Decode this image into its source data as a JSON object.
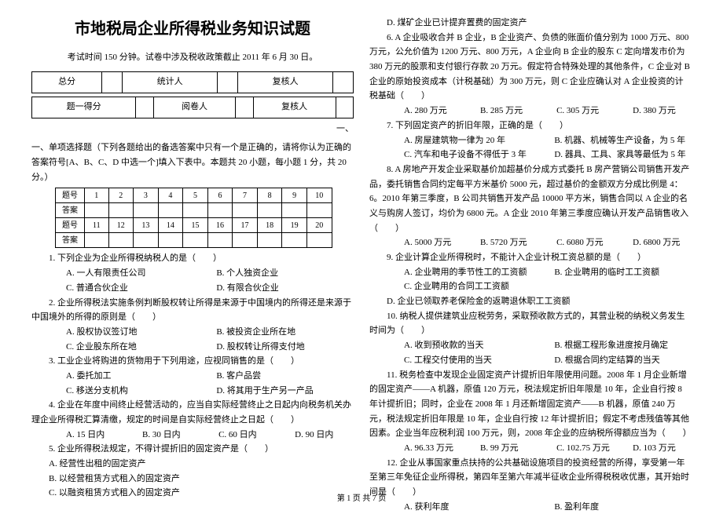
{
  "title": "市地税局企业所得税业务知识试题",
  "exam_meta": "考试时间 150 分钟。试卷中涉及税收政策截止 2011 年 6 月 30 日。",
  "header_table": {
    "row1": [
      "总分",
      "",
      "统计人",
      "",
      "复核人",
      ""
    ],
    "row2": [
      "题一得分",
      "",
      "阅卷人",
      "",
      "复核人",
      ""
    ]
  },
  "section1_label_suffix": "一、",
  "section1_head": "一、单项选择题（下列各题给出的备选答案中只有一个是正确的，请将你认为正确的答案符号[A、B、C、D 中选一个]填入下表中。本题共 20 小题，每小题 1 分，共 20 分。）",
  "answersheet": {
    "row_label": "题号",
    "ans_label": "答案",
    "nums1": [
      "1",
      "2",
      "3",
      "4",
      "5",
      "6",
      "7",
      "8",
      "9",
      "10"
    ],
    "nums2": [
      "11",
      "12",
      "13",
      "14",
      "15",
      "16",
      "17",
      "18",
      "19",
      "20"
    ]
  },
  "q1": {
    "stem": "1. 下列企业为企业所得税纳税人的是（　　）",
    "a": "A. 一人有限责任公司",
    "b": "B. 个人独资企业",
    "c": "C. 普通合伙企业",
    "d": "D. 有限合伙企业"
  },
  "q2": {
    "stem": "2. 企业所得税法实施条例判断股权转让所得是来源于中国境内的所得还是来源于中国境外的所得的原则是（　　）",
    "a": "A. 股权协议签订地",
    "b": "B. 被投资企业所在地",
    "c": "C. 企业股东所在地",
    "d": "D. 股权转让所得支付地"
  },
  "q3": {
    "stem": "3. 工业企业将购进的货物用于下列用途，应视同销售的是（　　）",
    "a": "A. 委托加工",
    "b": "B. 客户品尝",
    "c": "C. 移送分支机构",
    "d": "D. 将其用于生产另一产品"
  },
  "q4": {
    "stem": "4. 企业在年度中间终止经营活动的，应当自实际经营终止之日起内向税务机关办理企业所得税汇算清缴，规定的时间是自实际经营终止之日起（　　）",
    "a": "A. 15 日内",
    "b": "B. 30 日内",
    "c": "C. 60 日内",
    "d": "D. 90 日内"
  },
  "q5": {
    "stem": "5. 企业所得税法规定，不得计提折旧的固定资产是（　　）",
    "a": "A. 经营性出租的固定资产",
    "b": "B. 以经营租赁方式租入的固定资产",
    "c": "C. 以融资租赁方式租入的固定资产",
    "d": "D. 煤矿企业已计提弃置费的固定资产"
  },
  "q6": {
    "stem": "6. A 企业吸收合并 B 企业，B 企业资产、负债的账面价值分别为 1000 万元、800 万元，公允价值为 1200 万元、800 万元，A 企业向 B 企业的股东 C 定向增发市价为 380 万元的股票和支付银行存款 20 万元。假定符合特殊处理的其他条件，C 企业对 B 企业的原始投资成本（计税基础）为 300 万元，则 C 企业应确认对 A 企业投资的计税基础（　　）",
    "a": "A. 280 万元",
    "b": "B. 285 万元",
    "c": "C. 305 万元",
    "d": "D. 380 万元"
  },
  "q7": {
    "stem": "7. 下列固定资产的折旧年限，正确的是（　　）",
    "a": "A. 房屋建筑物一律为 20 年",
    "b": "B. 机器、机械等生产设备，为 5 年",
    "c": "C. 汽车和电子设备不得低于 3 年",
    "d": "D. 器具、工具、家具等最低为 5 年"
  },
  "q8": {
    "stem": "8. A 房地产开发企业采取基价加超基价分成方式委托 B 房产营销公司销售开发产品，委托销售合同约定每平方米基价 5000 元，超过基价的金额双方分成比例是 4：6。2010 年第三季度，B 公司共销售开发产品 10000 平方米，销售合同以 A 企业的名义与购房人签订，均价为 6800 元。A 企业 2010 年第三季度应确认开发产品销售收入（　　）",
    "a": "A. 5000 万元",
    "b": "B. 5720 万元",
    "c": "C. 6080 万元",
    "d": "D. 6800 万元"
  },
  "q9": {
    "stem": "9. 企业计算企业所得税时，不能计入企业计税工资总额的是（　　）",
    "a": "A. 企业聘用的季节性工的工资额",
    "b": "B. 企业聘用的临时工工资额",
    "c": "C. 企业聘用的合同工工资额",
    "d": "D. 企业已领取养老保险金的返聘退休职工工资额"
  },
  "q10": {
    "stem": "10. 纳税人提供建筑业应税劳务，采取预收款方式的，其营业税的纳税义务发生时间为（　　）",
    "a": "A. 收到预收款的当天",
    "b": "B. 根据工程形象进度按月确定",
    "c": "C. 工程交付使用的当天",
    "d": "D. 根据合同约定结算的当天"
  },
  "q11": {
    "stem": "11. 税务检查中发现企业固定资产计提折旧年限使用问题。2008 年 1 月企业新增的固定资产——A 机器，原值 120 万元，税法规定折旧年限是 10 年，企业自行按 8 年计提折旧；同时，企业在 2008 年 1 月还新增固定资产——B 机器，原值 240 万元，税法规定折旧年限是 10 年，企业自行按 12 年计提折旧；假定不考虑残值等其他因素。企业当年应税利润 100 万元，则，2008 年企业的应纳税所得额应当为（　　）",
    "a": "A. 96.33 万元",
    "b": "B. 99 万元",
    "c": "C. 102.75 万元",
    "d": "D. 103 万元"
  },
  "q12": {
    "stem": "12. 企业从事国家重点扶持的公共基础设施项目的投资经营的所得，享受第一年至第三年免征企业所得税，第四年至第六年减半征收企业所得税税收优惠，其开始时间是（　　）",
    "a": "A. 获利年度",
    "b": "B. 盈利年度"
  },
  "footer": "第 1 页 共 7 页"
}
